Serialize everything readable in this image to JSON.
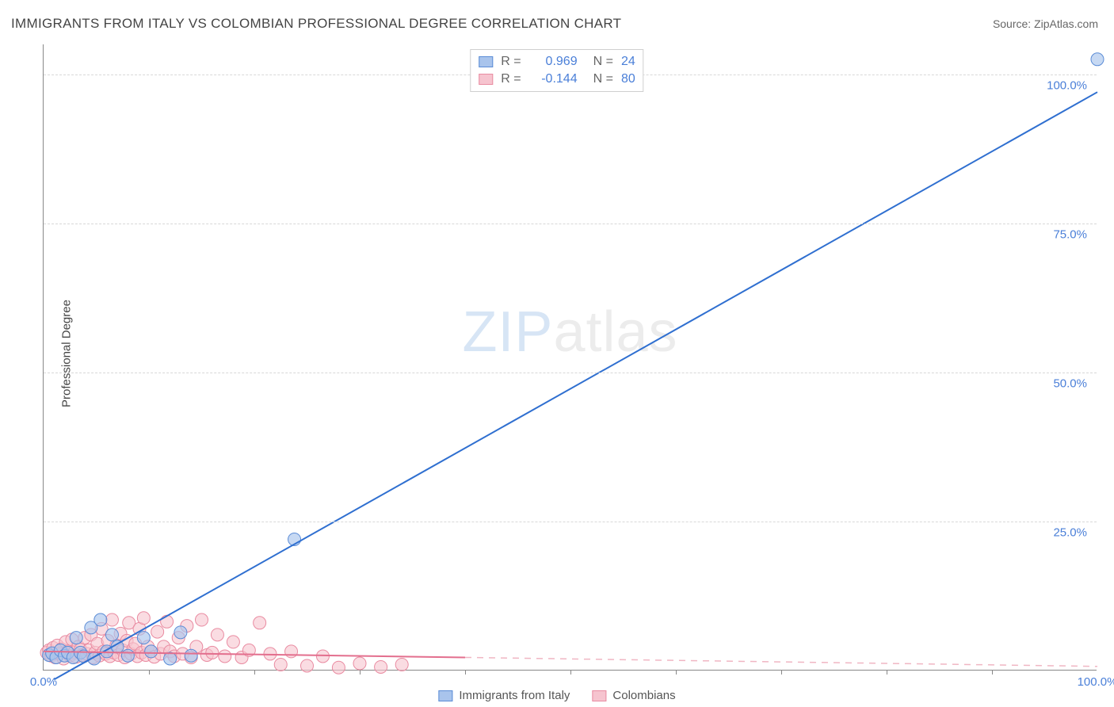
{
  "title": "IMMIGRANTS FROM ITALY VS COLOMBIAN PROFESSIONAL DEGREE CORRELATION CHART",
  "source": "Source: ZipAtlas.com",
  "ylabel": "Professional Degree",
  "watermark": {
    "part1": "ZIP",
    "part2": "atlas"
  },
  "axes": {
    "xlim": [
      0,
      100
    ],
    "ylim": [
      0,
      105
    ],
    "x_ticks_minor": [
      10,
      20,
      30,
      40,
      50,
      60,
      70,
      80,
      90
    ],
    "x_ticks_labeled": [
      {
        "v": 0,
        "label": "0.0%"
      },
      {
        "v": 100,
        "label": "100.0%"
      }
    ],
    "y_gridlines": [
      {
        "v": 25,
        "label": "25.0%"
      },
      {
        "v": 50,
        "label": "50.0%"
      },
      {
        "v": 75,
        "label": "75.0%"
      },
      {
        "v": 100,
        "label": "100.0%"
      }
    ],
    "tick_label_color": "#4a7fd8",
    "grid_color": "#d8d8d8",
    "y_label_offset": 14
  },
  "series": [
    {
      "id": "italy",
      "label": "Immigrants from Italy",
      "color_fill": "#a9c4ec",
      "color_stroke": "#5b8cd6",
      "line_color": "#2f6fd0",
      "line_width": 2,
      "line_dash": "none",
      "marker_radius": 8,
      "marker_opacity": 0.65,
      "R": "0.969",
      "N": "24",
      "fit_line": {
        "x1": 1.0,
        "y1": -1.5,
        "x2": 100,
        "y2": 97.0
      },
      "points": [
        [
          0.5,
          2.6
        ],
        [
          0.8,
          2.9
        ],
        [
          1.2,
          2.2
        ],
        [
          1.6,
          3.4
        ],
        [
          2.0,
          2.5
        ],
        [
          2.3,
          3.0
        ],
        [
          2.8,
          2.2
        ],
        [
          3.1,
          5.5
        ],
        [
          3.5,
          3.0
        ],
        [
          3.8,
          2.4
        ],
        [
          4.5,
          7.2
        ],
        [
          4.8,
          2.0
        ],
        [
          5.4,
          8.5
        ],
        [
          6.0,
          3.2
        ],
        [
          6.5,
          6.0
        ],
        [
          7.0,
          4.0
        ],
        [
          8.0,
          2.5
        ],
        [
          9.5,
          5.5
        ],
        [
          10.2,
          3.2
        ],
        [
          12.0,
          2.0
        ],
        [
          13.0,
          6.4
        ],
        [
          14.0,
          2.5
        ],
        [
          23.8,
          22.0
        ],
        [
          100,
          102.5
        ]
      ]
    },
    {
      "id": "colombians",
      "label": "Colombians",
      "color_fill": "#f6c4cf",
      "color_stroke": "#e98ba1",
      "line_color": "#e36f8e",
      "line_width": 2,
      "line_dash": "none",
      "dash_ext_color": "#f0b6c3",
      "marker_radius": 8,
      "marker_opacity": 0.6,
      "R": "-0.144",
      "N": "80",
      "fit_line": {
        "x1": 0,
        "y1": 3.2,
        "x2": 40,
        "y2": 2.2
      },
      "fit_line_ext": {
        "x1": 40,
        "y1": 2.2,
        "x2": 100,
        "y2": 0.7
      },
      "points": [
        [
          0.3,
          3.0
        ],
        [
          0.5,
          3.4
        ],
        [
          0.7,
          2.5
        ],
        [
          0.9,
          3.8
        ],
        [
          1.1,
          2.2
        ],
        [
          1.3,
          4.2
        ],
        [
          1.5,
          2.8
        ],
        [
          1.7,
          3.6
        ],
        [
          1.9,
          2.0
        ],
        [
          2.1,
          4.8
        ],
        [
          2.3,
          3.2
        ],
        [
          2.5,
          2.5
        ],
        [
          2.7,
          5.2
        ],
        [
          2.9,
          3.0
        ],
        [
          3.1,
          2.3
        ],
        [
          3.3,
          4.0
        ],
        [
          3.5,
          3.5
        ],
        [
          3.7,
          2.6
        ],
        [
          3.9,
          5.5
        ],
        [
          4.1,
          2.8
        ],
        [
          4.3,
          3.4
        ],
        [
          4.5,
          6.0
        ],
        [
          4.7,
          2.2
        ],
        [
          4.9,
          3.0
        ],
        [
          5.1,
          4.5
        ],
        [
          5.3,
          2.5
        ],
        [
          5.5,
          7.0
        ],
        [
          5.7,
          3.2
        ],
        [
          5.9,
          2.8
        ],
        [
          6.1,
          5.0
        ],
        [
          6.3,
          2.4
        ],
        [
          6.5,
          8.5
        ],
        [
          6.7,
          3.0
        ],
        [
          6.9,
          4.2
        ],
        [
          7.1,
          2.6
        ],
        [
          7.3,
          6.2
        ],
        [
          7.5,
          3.4
        ],
        [
          7.7,
          2.2
        ],
        [
          7.9,
          5.0
        ],
        [
          8.1,
          8.0
        ],
        [
          8.3,
          2.8
        ],
        [
          8.5,
          3.6
        ],
        [
          8.7,
          4.5
        ],
        [
          8.9,
          2.4
        ],
        [
          9.1,
          7.0
        ],
        [
          9.3,
          3.0
        ],
        [
          9.5,
          8.8
        ],
        [
          9.7,
          2.6
        ],
        [
          9.9,
          4.0
        ],
        [
          10.2,
          3.2
        ],
        [
          10.5,
          2.3
        ],
        [
          10.8,
          6.5
        ],
        [
          11.1,
          2.8
        ],
        [
          11.4,
          4.0
        ],
        [
          11.7,
          8.2
        ],
        [
          12.0,
          3.2
        ],
        [
          12.4,
          2.4
        ],
        [
          12.8,
          5.5
        ],
        [
          13.2,
          2.8
        ],
        [
          13.6,
          7.5
        ],
        [
          14.0,
          2.2
        ],
        [
          14.5,
          4.0
        ],
        [
          15.0,
          8.5
        ],
        [
          15.5,
          2.6
        ],
        [
          16.0,
          3.0
        ],
        [
          16.5,
          6.0
        ],
        [
          17.2,
          2.4
        ],
        [
          18.0,
          4.8
        ],
        [
          18.8,
          2.2
        ],
        [
          19.5,
          3.4
        ],
        [
          20.5,
          8.0
        ],
        [
          21.5,
          2.8
        ],
        [
          22.5,
          1.0
        ],
        [
          23.5,
          3.2
        ],
        [
          25.0,
          0.8
        ],
        [
          26.5,
          2.4
        ],
        [
          28.0,
          0.5
        ],
        [
          30.0,
          1.2
        ],
        [
          32.0,
          0.6
        ],
        [
          34.0,
          1.0
        ]
      ]
    }
  ],
  "legend_bottom": [
    {
      "series": "italy"
    },
    {
      "series": "colombians"
    }
  ]
}
